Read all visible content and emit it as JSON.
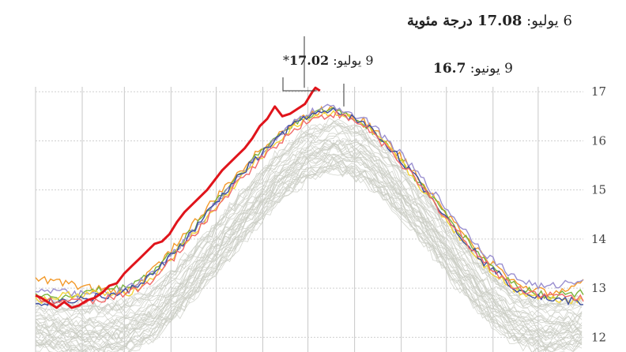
{
  "chart_data": {
    "type": "line",
    "x_unit": "day of year",
    "ylim": [
      11.7,
      17.1
    ],
    "y_ticks": [
      12,
      13,
      14,
      15,
      16,
      17
    ],
    "y_tick_labels": [
      "12",
      "13",
      "14",
      "15",
      "16",
      "17"
    ],
    "grid": true,
    "legend": "none",
    "colors": {
      "highlight": "#e0141b",
      "history": "#c9ccc3",
      "recent": [
        "#f39a2b",
        "#7bb33c",
        "#9a8fd0",
        "#f2d43a",
        "#3e4ea0",
        "#f06a6a"
      ]
    },
    "annotations": [
      {
        "label_prefix": "6 يوليو: ",
        "label_value": "17.08 درجة مئوية",
        "x": 187,
        "y": 17.08
      },
      {
        "label_prefix": "9 يوليو: ",
        "label_value": "17.02",
        "label_suffix": "*",
        "x": 190,
        "y": 17.02
      },
      {
        "label_prefix": "9 يونيو: ",
        "label_value": "16.7",
        "x": 160,
        "y": 16.7
      }
    ],
    "highlight_series": {
      "x": [
        1,
        5,
        10,
        15,
        20,
        25,
        30,
        35,
        40,
        45,
        50,
        55,
        60,
        65,
        70,
        75,
        80,
        85,
        90,
        95,
        100,
        105,
        110,
        115,
        120,
        125,
        130,
        135,
        140,
        145,
        150,
        155,
        160,
        165,
        170,
        175,
        180,
        185,
        187,
        190
      ],
      "y": [
        12.85,
        12.8,
        12.7,
        12.6,
        12.72,
        12.6,
        12.65,
        12.75,
        12.8,
        12.9,
        13.05,
        13.1,
        13.3,
        13.45,
        13.6,
        13.75,
        13.9,
        13.95,
        14.1,
        14.35,
        14.55,
        14.7,
        14.85,
        15.0,
        15.2,
        15.4,
        15.55,
        15.7,
        15.85,
        16.05,
        16.3,
        16.45,
        16.7,
        16.5,
        16.55,
        16.65,
        16.75,
        17.0,
        17.08,
        17.02
      ]
    },
    "recent_series": [
      {
        "x": [
          1,
          20,
          40,
          60,
          80,
          100,
          120,
          140,
          160,
          180,
          200,
          220,
          240,
          260,
          280,
          300,
          320,
          340,
          365
        ],
        "y": [
          13.2,
          13.1,
          13.0,
          12.9,
          13.4,
          14.1,
          14.8,
          15.5,
          16.1,
          16.5,
          16.7,
          16.4,
          15.8,
          15.1,
          14.3,
          13.6,
          13.1,
          12.9,
          13.1
        ]
      },
      {
        "x": [
          1,
          20,
          40,
          60,
          80,
          100,
          120,
          140,
          160,
          180,
          200,
          220,
          240,
          260,
          280,
          300,
          320,
          340,
          365
        ],
        "y": [
          12.9,
          12.8,
          12.95,
          13.0,
          13.35,
          14.0,
          14.75,
          15.45,
          16.05,
          16.5,
          16.65,
          16.35,
          15.75,
          15.0,
          14.25,
          13.55,
          13.05,
          12.85,
          12.9
        ]
      },
      {
        "x": [
          1,
          20,
          40,
          60,
          80,
          100,
          120,
          140,
          160,
          180,
          200,
          220,
          240,
          260,
          280,
          300,
          320,
          340,
          365
        ],
        "y": [
          13.0,
          12.9,
          12.85,
          12.95,
          13.3,
          13.95,
          14.7,
          15.4,
          16.0,
          16.55,
          16.7,
          16.45,
          15.85,
          15.15,
          14.4,
          13.7,
          13.2,
          13.0,
          13.2
        ]
      },
      {
        "x": [
          1,
          20,
          40,
          60,
          80,
          100,
          120,
          140,
          160,
          180,
          200,
          220,
          240,
          260,
          280,
          300,
          320,
          340,
          365
        ],
        "y": [
          12.75,
          12.85,
          12.9,
          12.85,
          13.25,
          13.9,
          14.6,
          15.35,
          15.95,
          16.45,
          16.6,
          16.3,
          15.7,
          14.95,
          14.15,
          13.45,
          12.95,
          12.8,
          12.75
        ]
      },
      {
        "x": [
          1,
          20,
          40,
          60,
          80,
          100,
          120,
          140,
          160,
          180,
          200,
          220,
          240,
          260,
          280,
          300,
          320,
          340,
          365
        ],
        "y": [
          12.7,
          12.75,
          12.8,
          12.9,
          13.3,
          13.95,
          14.7,
          15.4,
          16.0,
          16.5,
          16.6,
          16.35,
          15.75,
          15.0,
          14.2,
          13.5,
          13.0,
          12.8,
          12.7
        ]
      },
      {
        "x": [
          1,
          20,
          40,
          60,
          80,
          100,
          120,
          140,
          160,
          180,
          200,
          220,
          240,
          260,
          280,
          300,
          320,
          340,
          365
        ],
        "y": [
          12.8,
          12.7,
          12.75,
          12.85,
          13.2,
          13.85,
          14.6,
          15.3,
          15.9,
          16.4,
          16.55,
          16.3,
          15.7,
          14.95,
          14.2,
          13.5,
          13.0,
          12.85,
          12.8
        ]
      }
    ],
    "history_band": {
      "count": 40,
      "x": [
        1,
        20,
        40,
        60,
        80,
        100,
        120,
        140,
        160,
        180,
        200,
        220,
        240,
        260,
        280,
        300,
        320,
        340,
        365
      ],
      "base": [
        12.3,
        12.2,
        12.15,
        12.2,
        12.5,
        13.1,
        13.8,
        14.5,
        15.2,
        15.7,
        15.9,
        15.7,
        15.1,
        14.4,
        13.6,
        12.9,
        12.4,
        12.2,
        12.3
      ],
      "spread": 0.55
    },
    "month_boundaries": [
      1,
      32,
      60,
      91,
      121,
      152,
      182,
      213,
      244,
      274,
      305,
      335
    ],
    "xlim": [
      1,
      365
    ]
  }
}
